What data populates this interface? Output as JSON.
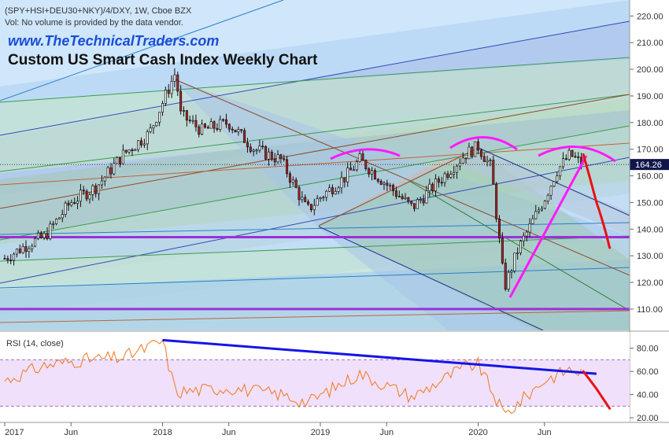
{
  "header": {
    "symbol_line": "(SPY+HSI+DEU30+NKY)/4/DXY, 1W, Cboe BZX",
    "volume_note": "Vol: No volume is provided by the data vendor.",
    "website": "www.TheTechnicalTraders.com",
    "title": "Custom US Smart Cash Index Weekly Chart"
  },
  "colors": {
    "up_candle": "#ffffff",
    "down_candle": "#b22222",
    "candle_outline": "#111111",
    "arc": "#ff19ff",
    "forecast": "#e81212",
    "rsi_line": "#f07820",
    "rsi_trend": "#1515e6",
    "horizontal_levels": "#9b30d9",
    "rsi_band": "#f0e0fb"
  },
  "chart_data": [
    {
      "type": "candlestick",
      "title": "Custom US Smart Cash Index Weekly Chart",
      "timeframe": "1W",
      "x_tick_labels": [
        "2017",
        "Jun",
        "2018",
        "Jun",
        "2019",
        "Jun",
        "2020",
        "Jun"
      ],
      "ylim": [
        102,
        226
      ],
      "y_ticks": [
        110,
        120,
        130,
        140,
        150,
        160,
        170,
        180,
        190,
        200,
        210,
        220
      ],
      "last_price_label": "164.26",
      "approx_close_path": [
        {
          "x": "2017-01",
          "y": 129
        },
        {
          "x": "2017-03",
          "y": 135
        },
        {
          "x": "2017-04",
          "y": 137
        },
        {
          "x": "2017-06",
          "y": 150
        },
        {
          "x": "2017-08",
          "y": 156
        },
        {
          "x": "2017-10",
          "y": 168
        },
        {
          "x": "2017-12",
          "y": 176
        },
        {
          "x": "2018-02",
          "y": 199
        },
        {
          "x": "2018-02",
          "y": 183
        },
        {
          "x": "2018-04",
          "y": 177
        },
        {
          "x": "2018-06",
          "y": 180
        },
        {
          "x": "2018-08",
          "y": 170
        },
        {
          "x": "2018-10",
          "y": 166
        },
        {
          "x": "2018-12",
          "y": 147
        },
        {
          "x": "2019-01",
          "y": 152
        },
        {
          "x": "2019-03",
          "y": 160
        },
        {
          "x": "2019-04",
          "y": 166
        },
        {
          "x": "2019-06",
          "y": 157
        },
        {
          "x": "2019-08",
          "y": 148
        },
        {
          "x": "2019-10",
          "y": 158
        },
        {
          "x": "2019-12",
          "y": 168
        },
        {
          "x": "2020-01",
          "y": 171
        },
        {
          "x": "2020-02",
          "y": 163
        },
        {
          "x": "2020-03",
          "y": 118
        },
        {
          "x": "2020-04",
          "y": 132
        },
        {
          "x": "2020-06",
          "y": 151
        },
        {
          "x": "2020-07",
          "y": 162
        },
        {
          "x": "2020-08",
          "y": 168
        },
        {
          "x": "2020-09",
          "y": 164
        }
      ],
      "horizontal_levels": [
        110,
        137
      ],
      "forecast_path": [
        {
          "x": "2020-09",
          "y": 168
        },
        {
          "x": "2020-10",
          "y": 150
        },
        {
          "x": "2020-11",
          "y": 133
        }
      ]
    },
    {
      "type": "line",
      "title": "RSI (14, close)",
      "ylim": [
        16,
        92
      ],
      "y_ticks": [
        20,
        40,
        60,
        80
      ],
      "band": [
        30,
        70
      ],
      "approx_path": [
        {
          "x": "2017-01",
          "y": 52
        },
        {
          "x": "2017-04",
          "y": 65
        },
        {
          "x": "2017-07",
          "y": 70
        },
        {
          "x": "2017-10",
          "y": 72
        },
        {
          "x": "2018-01",
          "y": 86
        },
        {
          "x": "2018-02",
          "y": 42
        },
        {
          "x": "2018-06",
          "y": 46
        },
        {
          "x": "2018-10",
          "y": 40
        },
        {
          "x": "2018-12",
          "y": 33
        },
        {
          "x": "2019-04",
          "y": 58
        },
        {
          "x": "2019-08",
          "y": 38
        },
        {
          "x": "2019-12",
          "y": 64
        },
        {
          "x": "2020-01",
          "y": 66
        },
        {
          "x": "2020-03",
          "y": 22
        },
        {
          "x": "2020-06",
          "y": 52
        },
        {
          "x": "2020-08",
          "y": 62
        },
        {
          "x": "2020-09",
          "y": 58
        }
      ],
      "trendline": [
        {
          "x": "2018-01",
          "y": 87
        },
        {
          "x": "2020-10",
          "y": 58
        }
      ],
      "forecast_path": [
        {
          "x": "2020-09",
          "y": 60
        },
        {
          "x": "2020-10",
          "y": 45
        },
        {
          "x": "2020-11",
          "y": 28
        }
      ]
    }
  ]
}
